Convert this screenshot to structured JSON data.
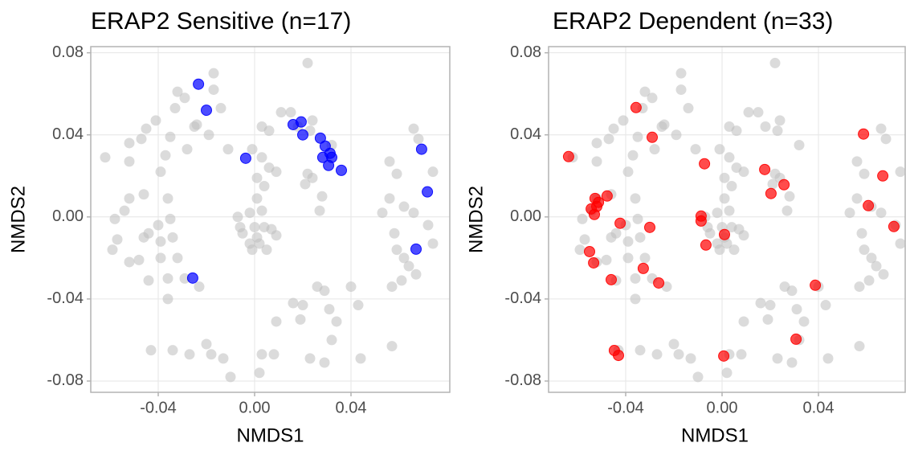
{
  "chart_data": [
    {
      "type": "scatter",
      "title": "ERAP2 Sensitive (n=17)",
      "xlabel": "NMDS1",
      "ylabel": "NMDS2",
      "xlim": [
        -0.068,
        0.081
      ],
      "ylim": [
        -0.0855,
        0.083
      ],
      "xticks": [
        -0.04,
        {
          "value": 0,
          "label": "0.00"
        },
        0.04
      ],
      "yticks": [
        -0.08,
        -0.04,
        {
          "value": 0,
          "label": "0.00"
        },
        0.04,
        0.08
      ],
      "grid": true,
      "series": [
        {
          "color": "#bdbdbd",
          "x": [
            -0.062,
            -0.052,
            -0.052,
            -0.047,
            -0.045,
            -0.041,
            -0.037,
            -0.039,
            -0.035,
            -0.033,
            -0.032,
            -0.029,
            -0.028,
            -0.025,
            -0.024,
            -0.019,
            -0.017,
            -0.017,
            -0.014,
            -0.011,
            -0.046,
            -0.052,
            -0.054,
            -0.058,
            -0.057,
            -0.059,
            -0.052,
            -0.048,
            -0.046,
            -0.044,
            -0.04,
            -0.039,
            -0.035,
            -0.036,
            -0.034,
            -0.039,
            -0.044,
            -0.036,
            -0.032,
            -0.029,
            -0.023,
            -0.036,
            -0.043,
            -0.034,
            -0.027,
            -0.02,
            -0.018,
            -0.013,
            -0.01,
            -0.007,
            -0.006,
            -0.005,
            -0.002,
            0,
            0.001,
            -0.002,
            -0.001,
            0.002,
            0.004,
            0.007,
            0.009,
            0.005,
            0.003,
            0.001,
            0.004,
            0.001,
            0.006,
            0.003,
            -0.001,
            0.003,
            0.006,
            0.009,
            0.011,
            0.015,
            0.018,
            0.024,
            0.023,
            0.022,
            0.021,
            0.024,
            0.028,
            0.027,
            0.032,
            0.022,
            0.009,
            0.016,
            0.019,
            0.02,
            0.026,
            0.029,
            0.031,
            0.034,
            0.04,
            0.043,
            0.002,
            0.003,
            0.008,
            0.023,
            0.029,
            0.032,
            0.044,
            0.057,
            0.053,
            0.056,
            0.056,
            0.059,
            0.062,
            0.066,
            0.068,
            0.074,
            0.066,
            0.072,
            0.074,
            0.058,
            0.059,
            0.062,
            0.064,
            0.061,
            0.067,
            0.057
          ],
          "values": [
            0.029,
            0.027,
            0.036,
            0.038,
            0.043,
            0.047,
            0.03,
            0.022,
            0.039,
            0.053,
            0.061,
            0.058,
            0.033,
            0.044,
            0.045,
            0.04,
            0.07,
            0.062,
            0.053,
            0.033,
            0.011,
            0.009,
            0.003,
            -0.001,
            -0.011,
            -0.016,
            -0.022,
            -0.021,
            -0.01,
            -0.008,
            -0.004,
            -0.012,
            -0.001,
            0.009,
            -0.01,
            -0.02,
            -0.031,
            -0.03,
            -0.02,
            -0.03,
            -0.034,
            -0.04,
            -0.065,
            -0.065,
            -0.067,
            -0.062,
            -0.067,
            -0.069,
            -0.078,
            0,
            -0.005,
            -0.008,
            0.002,
            -0.005,
            -0.01,
            -0.013,
            -0.016,
            -0.013,
            -0.005,
            -0.006,
            -0.009,
            -0.016,
            0.003,
            0.009,
            0.015,
            0.019,
            0.024,
            0.029,
            0.033,
            0.044,
            0.042,
            0.022,
            0.051,
            0.051,
            0.044,
            0.047,
            0.042,
            0.021,
            0.016,
            0.019,
            0.01,
            0.003,
            0.035,
            0.075,
            -0.051,
            -0.042,
            -0.05,
            -0.043,
            -0.034,
            -0.036,
            -0.045,
            -0.051,
            -0.034,
            -0.043,
            -0.076,
            -0.067,
            -0.067,
            -0.069,
            -0.071,
            -0.06,
            -0.069,
            -0.063,
            0.002,
            0.009,
            0.027,
            0.021,
            0.005,
            0.043,
            0.038,
            0.022,
            0.002,
            -0.004,
            -0.013,
            -0.008,
            -0.016,
            -0.02,
            -0.024,
            -0.031,
            -0.028,
            -0.034
          ]
        },
        {
          "color": "#0000ff",
          "x": [
            -0.0233,
            -0.02,
            -0.0037,
            0.016,
            0.0193,
            0.02,
            0.0273,
            0.0293,
            0.0313,
            0.032,
            0.0283,
            0.0307,
            0.036,
            0.0693,
            0.0717,
            0.067,
            -0.0257
          ],
          "values": [
            0.0647,
            0.052,
            0.0286,
            0.045,
            0.0463,
            0.04,
            0.0384,
            0.0345,
            0.031,
            0.029,
            0.029,
            0.0251,
            0.0227,
            0.033,
            0.0122,
            -0.0157,
            -0.0298
          ]
        }
      ]
    },
    {
      "type": "scatter",
      "title": "ERAP2 Dependent (n=33)",
      "xlabel": "NMDS1",
      "ylabel": "NMDS2",
      "xlim": [
        -0.072,
        0.076
      ],
      "ylim": [
        -0.0855,
        0.083
      ],
      "xticks": [
        -0.04,
        {
          "value": 0,
          "label": "0.00"
        },
        0.04
      ],
      "yticks": [
        -0.08,
        -0.04,
        {
          "value": 0,
          "label": "0.00"
        },
        0.04,
        0.08
      ],
      "grid": true,
      "series": [
        {
          "color": "#bdbdbd",
          "x": [
            -0.062,
            -0.052,
            -0.052,
            -0.047,
            -0.045,
            -0.041,
            -0.037,
            -0.039,
            -0.035,
            -0.033,
            -0.032,
            -0.029,
            -0.028,
            -0.025,
            -0.024,
            -0.019,
            -0.017,
            -0.017,
            -0.014,
            -0.011,
            -0.046,
            -0.052,
            -0.054,
            -0.058,
            -0.057,
            -0.059,
            -0.052,
            -0.048,
            -0.046,
            -0.044,
            -0.04,
            -0.039,
            -0.035,
            -0.036,
            -0.034,
            -0.039,
            -0.044,
            -0.036,
            -0.032,
            -0.029,
            -0.023,
            -0.036,
            -0.043,
            -0.034,
            -0.027,
            -0.02,
            -0.018,
            -0.013,
            -0.01,
            -0.007,
            -0.006,
            -0.005,
            -0.002,
            0,
            0.001,
            -0.002,
            -0.001,
            0.002,
            0.004,
            0.007,
            0.009,
            0.005,
            0.003,
            0.001,
            0.004,
            0.001,
            0.006,
            0.003,
            -0.001,
            0.003,
            0.006,
            0.009,
            0.011,
            0.015,
            0.018,
            0.024,
            0.023,
            0.022,
            0.021,
            0.024,
            0.028,
            0.027,
            0.032,
            0.022,
            0.009,
            0.016,
            0.019,
            0.02,
            0.026,
            0.029,
            0.031,
            0.034,
            0.04,
            0.043,
            0.002,
            0.003,
            0.008,
            0.023,
            0.029,
            0.032,
            0.044,
            0.057,
            0.053,
            0.056,
            0.056,
            0.059,
            0.062,
            0.066,
            0.068,
            0.074,
            0.066,
            0.072,
            0.074,
            0.058,
            0.059,
            0.062,
            0.064,
            0.061,
            0.067,
            0.057
          ],
          "values": [
            0.029,
            0.027,
            0.036,
            0.038,
            0.043,
            0.047,
            0.03,
            0.022,
            0.039,
            0.053,
            0.061,
            0.058,
            0.033,
            0.044,
            0.045,
            0.04,
            0.07,
            0.062,
            0.053,
            0.033,
            0.011,
            0.009,
            0.003,
            -0.001,
            -0.011,
            -0.016,
            -0.022,
            -0.021,
            -0.01,
            -0.008,
            -0.004,
            -0.012,
            -0.001,
            0.009,
            -0.01,
            -0.02,
            -0.031,
            -0.03,
            -0.02,
            -0.03,
            -0.034,
            -0.04,
            -0.065,
            -0.065,
            -0.067,
            -0.062,
            -0.067,
            -0.069,
            -0.078,
            0,
            -0.005,
            -0.008,
            0.002,
            -0.005,
            -0.01,
            -0.013,
            -0.016,
            -0.013,
            -0.005,
            -0.006,
            -0.009,
            -0.016,
            0.003,
            0.009,
            0.015,
            0.019,
            0.024,
            0.029,
            0.033,
            0.044,
            0.042,
            0.022,
            0.051,
            0.051,
            0.044,
            0.047,
            0.042,
            0.021,
            0.016,
            0.019,
            0.01,
            0.003,
            0.035,
            0.075,
            -0.051,
            -0.042,
            -0.05,
            -0.043,
            -0.034,
            -0.036,
            -0.045,
            -0.051,
            -0.034,
            -0.043,
            -0.076,
            -0.067,
            -0.067,
            -0.069,
            -0.071,
            -0.06,
            -0.069,
            -0.063,
            0.002,
            0.009,
            0.027,
            0.021,
            0.005,
            0.043,
            0.038,
            0.022,
            0.002,
            -0.004,
            -0.013,
            -0.008,
            -0.016,
            -0.02,
            -0.024,
            -0.031,
            -0.028,
            -0.034
          ]
        },
        {
          "color": "#ff0000",
          "x": [
            -0.0637,
            -0.0357,
            -0.029,
            -0.0073,
            0.0177,
            0.0203,
            0.0257,
            0.0587,
            0.0667,
            0.0607,
            0.0713,
            -0.0477,
            -0.0527,
            -0.0513,
            -0.052,
            -0.0543,
            -0.053,
            -0.0423,
            -0.03,
            -0.0087,
            -0.0087,
            0.001,
            -0.0067,
            -0.055,
            -0.0533,
            -0.0327,
            -0.0263,
            -0.046,
            0.0387,
            0.0307,
            -0.0447,
            -0.043,
            0.0007
          ],
          "values": [
            0.0294,
            0.0533,
            0.0388,
            0.0259,
            0.0231,
            0.0114,
            0.0157,
            0.0404,
            0.02,
            0.0055,
            -0.0047,
            0.0102,
            0.009,
            0.0071,
            0.0051,
            0.0039,
            0.0012,
            -0.0031,
            -0.0051,
            0.0004,
            -0.002,
            -0.0086,
            -0.0137,
            -0.0169,
            -0.0224,
            -0.0251,
            -0.0322,
            -0.0306,
            -0.0333,
            -0.0596,
            -0.0651,
            -0.0675,
            -0.0678
          ]
        }
      ]
    }
  ]
}
